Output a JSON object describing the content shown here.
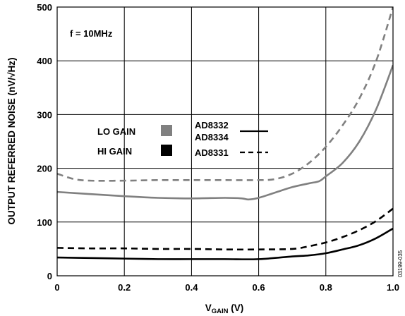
{
  "chart_data": {
    "type": "line",
    "xlabel": "V",
    "xlabel_sub": "GAIN",
    "xlabel_unit": " (V)",
    "ylabel": "OUTPUT REFERRED NOISE (nV/√Hz)",
    "xlim": [
      0,
      1.0
    ],
    "ylim": [
      0,
      500
    ],
    "x_ticks": [
      "0",
      "0.2",
      "0.4",
      "0.6",
      "0.8",
      "1.0"
    ],
    "x_tick_values": [
      0,
      0.2,
      0.4,
      0.6,
      0.8,
      1.0
    ],
    "y_ticks": [
      "0",
      "100",
      "200",
      "300",
      "400",
      "500"
    ],
    "y_tick_values": [
      0,
      100,
      200,
      300,
      400,
      500
    ],
    "grid": true,
    "annotation": "f = 10MHz",
    "figure_id": "03199-035",
    "legend": {
      "gain_modes": [
        {
          "label": "LO GAIN",
          "color": "#808080"
        },
        {
          "label": "HI GAIN",
          "color": "#000000"
        }
      ],
      "parts": [
        {
          "label": "AD8332",
          "label2": "AD8334",
          "style": "solid"
        },
        {
          "label": "AD8331",
          "style": "dashed"
        }
      ]
    },
    "series": [
      {
        "name": "LO GAIN AD8331",
        "color": "#808080",
        "dash": true,
        "x": [
          0,
          0.05,
          0.1,
          0.2,
          0.3,
          0.4,
          0.5,
          0.6,
          0.65,
          0.7,
          0.75,
          0.8,
          0.85,
          0.9,
          0.95,
          1.0
        ],
        "y": [
          190,
          180,
          177,
          177,
          178,
          178,
          178,
          178,
          180,
          190,
          210,
          240,
          280,
          330,
          400,
          500
        ]
      },
      {
        "name": "LO GAIN AD8332/AD8334",
        "color": "#808080",
        "dash": false,
        "x": [
          0,
          0.1,
          0.2,
          0.3,
          0.4,
          0.5,
          0.55,
          0.57,
          0.6,
          0.65,
          0.7,
          0.75,
          0.78,
          0.8,
          0.85,
          0.9,
          0.95,
          1.0
        ],
        "y": [
          156,
          152,
          148,
          145,
          144,
          145,
          144,
          142,
          145,
          155,
          165,
          172,
          176,
          185,
          210,
          250,
          310,
          392
        ]
      },
      {
        "name": "HI GAIN AD8331",
        "color": "#000000",
        "dash": true,
        "x": [
          0,
          0.1,
          0.2,
          0.3,
          0.4,
          0.5,
          0.6,
          0.7,
          0.75,
          0.8,
          0.85,
          0.9,
          0.95,
          1.0
        ],
        "y": [
          52,
          51,
          51,
          50,
          50,
          49,
          49,
          50,
          55,
          62,
          72,
          85,
          102,
          125
        ]
      },
      {
        "name": "HI GAIN AD8332/AD8334",
        "color": "#000000",
        "dash": false,
        "x": [
          0,
          0.1,
          0.2,
          0.3,
          0.4,
          0.5,
          0.6,
          0.7,
          0.75,
          0.8,
          0.85,
          0.9,
          0.95,
          1.0
        ],
        "y": [
          34,
          33,
          32,
          31,
          31,
          31,
          31,
          36,
          38,
          42,
          49,
          57,
          70,
          88
        ]
      }
    ]
  }
}
